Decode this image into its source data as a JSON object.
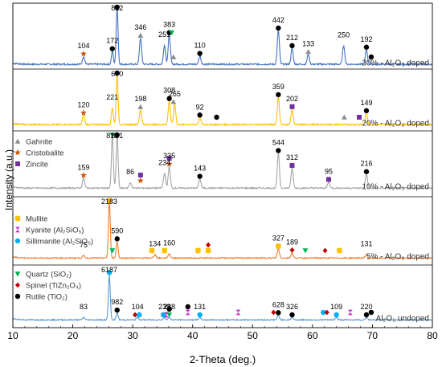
{
  "chart_data": {
    "type": "line",
    "title": "",
    "xlabel": "2-Theta (deg.)",
    "ylabel": "Intensity (a.u.)",
    "xlim": [
      10,
      80
    ],
    "x_ticks": [
      10,
      20,
      30,
      40,
      50,
      60,
      70,
      80
    ],
    "grid": false,
    "legend_position": "left, inside stacked panels",
    "phases": [
      {
        "name": "Gahnite",
        "marker": "triangle",
        "color": "#8c8c8c"
      },
      {
        "name": "Cristobalite",
        "marker": "star",
        "color": "#c55a11"
      },
      {
        "name": "Zincite",
        "marker": "square",
        "color": "#7030a0"
      },
      {
        "name": "Mullite",
        "marker": "rounded-square",
        "color": "#ffc000"
      },
      {
        "name": "Kyanite (Al₂SiO₅)",
        "marker": "bowtie",
        "color": "#cc33cc"
      },
      {
        "name": "Sillimanite (Al₂SiO₅)",
        "marker": "circle",
        "color": "#00b0f0"
      },
      {
        "name": "Quartz (SiO₂)",
        "marker": "triangle-down",
        "color": "#00b050"
      },
      {
        "name": "Spinel (TiZn₂O₄)",
        "marker": "diamond",
        "color": "#c00000"
      },
      {
        "name": "Rutile (TiO₂)",
        "marker": "circle",
        "color": "#000000"
      }
    ],
    "series": [
      {
        "name": "30% - Al₂O₃ doped",
        "color": "#4472c4",
        "peak_labels": [
          {
            "x": 21.8,
            "text": "104"
          },
          {
            "x": 26.6,
            "text": "172"
          },
          {
            "x": 27.4,
            "text": "822"
          },
          {
            "x": 31.3,
            "text": "346"
          },
          {
            "x": 35.3,
            "text": "251"
          },
          {
            "x": 36.1,
            "text": "383"
          },
          {
            "x": 41.2,
            "text": "110"
          },
          {
            "x": 54.3,
            "text": "442"
          },
          {
            "x": 56.6,
            "text": "212"
          },
          {
            "x": 59.3,
            "text": "133"
          },
          {
            "x": 65.2,
            "text": "250"
          },
          {
            "x": 69.0,
            "text": "192"
          }
        ],
        "markers": [
          {
            "x": 21.8,
            "phase": "Cristobalite"
          },
          {
            "x": 26.6,
            "phase": "Rutile (TiO₂)"
          },
          {
            "x": 27.4,
            "phase": "Rutile (TiO₂)"
          },
          {
            "x": 31.3,
            "phase": "Gahnite"
          },
          {
            "x": 36.1,
            "phase": "Rutile (TiO₂)"
          },
          {
            "x": 36.8,
            "phase": "Gahnite"
          },
          {
            "x": 36.5,
            "phase": "Quartz (SiO₂)"
          },
          {
            "x": 41.2,
            "phase": "Rutile (TiO₂)"
          },
          {
            "x": 54.3,
            "phase": "Rutile (TiO₂)"
          },
          {
            "x": 56.6,
            "phase": "Rutile (TiO₂)"
          },
          {
            "x": 59.3,
            "phase": "Gahnite"
          },
          {
            "x": 69.0,
            "phase": "Rutile (TiO₂)"
          },
          {
            "x": 69.8,
            "phase": "Rutile (TiO₂)"
          }
        ]
      },
      {
        "name": "20% - Al₂O₃ doped",
        "color": "#ffc000",
        "peak_labels": [
          {
            "x": 21.8,
            "text": "120"
          },
          {
            "x": 26.6,
            "text": "221"
          },
          {
            "x": 27.4,
            "text": "670"
          },
          {
            "x": 31.3,
            "text": "198"
          },
          {
            "x": 36.1,
            "text": "308"
          },
          {
            "x": 37.0,
            "text": "265"
          },
          {
            "x": 41.2,
            "text": "92"
          },
          {
            "x": 54.3,
            "text": "359"
          },
          {
            "x": 56.6,
            "text": "202"
          },
          {
            "x": 69.0,
            "text": "149"
          }
        ],
        "markers": [
          {
            "x": 21.8,
            "phase": "Cristobalite"
          },
          {
            "x": 27.4,
            "phase": "Rutile (TiO₂)"
          },
          {
            "x": 31.3,
            "phase": "Gahnite"
          },
          {
            "x": 36.1,
            "phase": "Rutile (TiO₂)"
          },
          {
            "x": 36.8,
            "phase": "Gahnite"
          },
          {
            "x": 41.2,
            "phase": "Rutile (TiO₂)"
          },
          {
            "x": 44.0,
            "phase": "Rutile (TiO₂)"
          },
          {
            "x": 54.3,
            "phase": "Rutile (TiO₂)"
          },
          {
            "x": 56.6,
            "phase": "Zincite"
          },
          {
            "x": 65.3,
            "phase": "Gahnite"
          },
          {
            "x": 67.8,
            "phase": "Zincite"
          },
          {
            "x": 69.0,
            "phase": "Rutile (TiO₂)"
          }
        ]
      },
      {
        "name": "10% - Al₂O₃ doped",
        "color": "#a5a5a5",
        "peak_labels": [
          {
            "x": 21.8,
            "text": "159"
          },
          {
            "x": 26.6,
            "text": "815"
          },
          {
            "x": 27.4,
            "text": "831"
          },
          {
            "x": 29.6,
            "text": "86"
          },
          {
            "x": 35.3,
            "text": "234"
          },
          {
            "x": 36.1,
            "text": "335"
          },
          {
            "x": 41.2,
            "text": "143"
          },
          {
            "x": 54.3,
            "text": "544"
          },
          {
            "x": 56.6,
            "text": "312"
          },
          {
            "x": 62.7,
            "text": "95"
          },
          {
            "x": 69.0,
            "text": "216"
          }
        ],
        "markers": [
          {
            "x": 21.8,
            "phase": "Cristobalite"
          },
          {
            "x": 26.6,
            "phase": "Quartz (SiO₂)"
          },
          {
            "x": 27.4,
            "phase": "Rutile (TiO₂)"
          },
          {
            "x": 31.3,
            "phase": "Cristobalite"
          },
          {
            "x": 31.3,
            "phase": "Zincite"
          },
          {
            "x": 36.1,
            "phase": "Cristobalite"
          },
          {
            "x": 36.1,
            "phase": "Zincite"
          },
          {
            "x": 41.2,
            "phase": "Rutile (TiO₂)"
          },
          {
            "x": 54.3,
            "phase": "Rutile (TiO₂)"
          },
          {
            "x": 56.6,
            "phase": "Zincite"
          },
          {
            "x": 62.7,
            "phase": "Zincite"
          },
          {
            "x": 69.0,
            "phase": "Rutile (TiO₂)"
          }
        ]
      },
      {
        "name": "5% - Al₂O₃ doped",
        "color": "#ed7d31",
        "peak_labels": [
          {
            "x": 21.8,
            "text": "75"
          },
          {
            "x": 26.1,
            "text": "2183"
          },
          {
            "x": 27.4,
            "text": "590"
          },
          {
            "x": 33.7,
            "text": "134"
          },
          {
            "x": 36.1,
            "text": "160"
          },
          {
            "x": 54.3,
            "text": "327"
          },
          {
            "x": 56.6,
            "text": "189"
          },
          {
            "x": 69.0,
            "text": "131"
          }
        ],
        "markers": [
          {
            "x": 26.1,
            "phase": "Mullite"
          },
          {
            "x": 26.6,
            "phase": "Quartz (SiO₂)"
          },
          {
            "x": 27.4,
            "phase": "Rutile (TiO₂)"
          },
          {
            "x": 33.2,
            "phase": "Mullite"
          },
          {
            "x": 35.3,
            "phase": "Mullite"
          },
          {
            "x": 40.9,
            "phase": "Mullite"
          },
          {
            "x": 42.6,
            "phase": "Mullite"
          },
          {
            "x": 42.6,
            "phase": "Spinel (TiZn₂O₄)"
          },
          {
            "x": 54.3,
            "phase": "Mullite"
          },
          {
            "x": 56.6,
            "phase": "Spinel (TiZn₂O₄)"
          },
          {
            "x": 58.8,
            "phase": "Quartz (SiO₂)"
          },
          {
            "x": 62.1,
            "phase": "Spinel (TiZn₂O₄)"
          },
          {
            "x": 64.5,
            "phase": "Mullite"
          }
        ]
      },
      {
        "name": "Al₂O₃ undoped",
        "color": "#5b9bd5",
        "peak_labels": [
          {
            "x": 21.8,
            "text": "83"
          },
          {
            "x": 26.1,
            "text": "6187"
          },
          {
            "x": 27.4,
            "text": "982"
          },
          {
            "x": 30.8,
            "text": "104"
          },
          {
            "x": 35.3,
            "text": "239"
          },
          {
            "x": 36.1,
            "text": "288"
          },
          {
            "x": 41.2,
            "text": "131"
          },
          {
            "x": 54.3,
            "text": "628"
          },
          {
            "x": 56.6,
            "text": "326"
          },
          {
            "x": 64.0,
            "text": "109"
          },
          {
            "x": 69.0,
            "text": "220"
          }
        ],
        "markers": [
          {
            "x": 26.1,
            "phase": "Sillimanite (Al₂SiO₅)"
          },
          {
            "x": 27.4,
            "phase": "Rutile (TiO₂)"
          },
          {
            "x": 30.4,
            "phase": "Spinel (TiZn₂O₄)"
          },
          {
            "x": 31.1,
            "phase": "Sillimanite (Al₂SiO₅)"
          },
          {
            "x": 35.1,
            "phase": "Sillimanite (Al₂SiO₅)"
          },
          {
            "x": 35.6,
            "phase": "Kyanite (Al₂SiO₅)"
          },
          {
            "x": 36.1,
            "phase": "Quartz (SiO₂)"
          },
          {
            "x": 36.1,
            "phase": "Rutile (TiO₂)"
          },
          {
            "x": 39.2,
            "phase": "Kyanite (Al₂SiO₅)"
          },
          {
            "x": 39.2,
            "phase": "Rutile (TiO₂)"
          },
          {
            "x": 41.2,
            "phase": "Sillimanite (Al₂SiO₅)"
          },
          {
            "x": 47.6,
            "phase": "Kyanite (Al₂SiO₅)"
          },
          {
            "x": 53.5,
            "phase": "Spinel (TiZn₂O₄)"
          },
          {
            "x": 54.3,
            "phase": "Rutile (TiO₂)"
          },
          {
            "x": 56.6,
            "phase": "Rutile (TiO₂)"
          },
          {
            "x": 61.8,
            "phase": "Sillimanite (Al₂SiO₅)"
          },
          {
            "x": 62.4,
            "phase": "Spinel (TiZn₂O₄)"
          },
          {
            "x": 64.0,
            "phase": "Sillimanite (Al₂SiO₅)"
          },
          {
            "x": 66.3,
            "phase": "Kyanite (Al₂SiO₅)"
          },
          {
            "x": 69.0,
            "phase": "Rutile (TiO₂)"
          },
          {
            "x": 69.8,
            "phase": "Rutile (TiO₂)"
          }
        ]
      }
    ]
  }
}
